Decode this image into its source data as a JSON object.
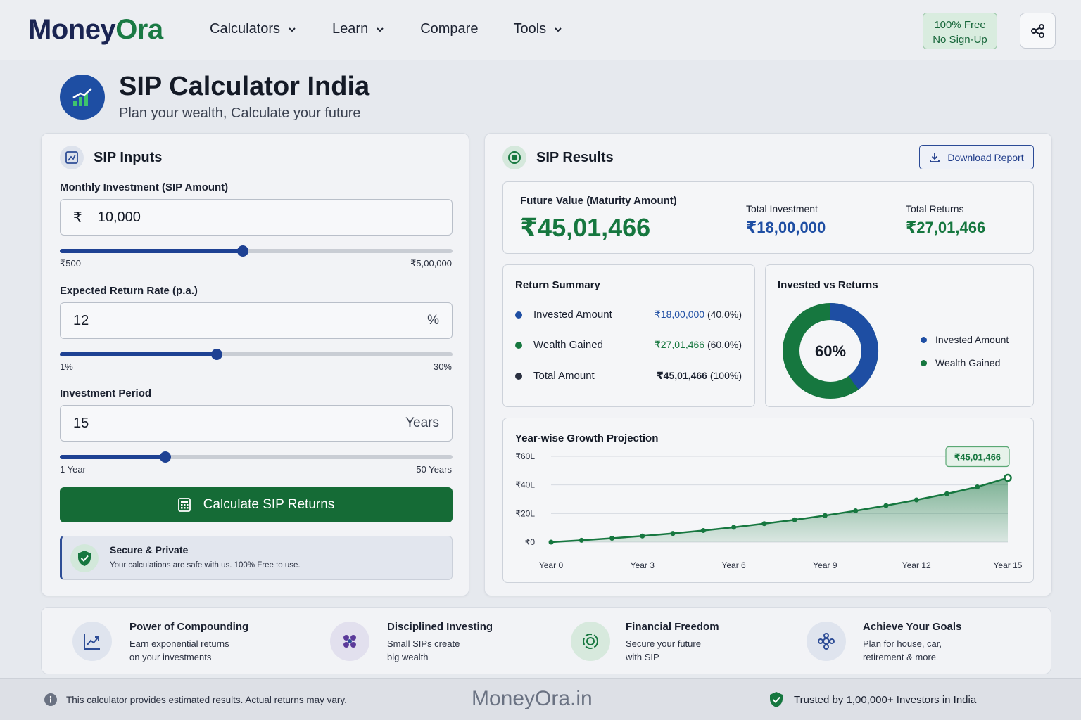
{
  "brand": {
    "part1": "Money",
    "part2": "Ora"
  },
  "nav": [
    {
      "label": "Calculators",
      "has_dropdown": true
    },
    {
      "label": "Learn",
      "has_dropdown": true
    },
    {
      "label": "Compare",
      "has_dropdown": false
    },
    {
      "label": "Tools",
      "has_dropdown": true
    }
  ],
  "badge": {
    "line1": "100% Free",
    "line2": "No Sign-Up"
  },
  "header": {
    "share_icon": "share-icon"
  },
  "page": {
    "title": "SIP Calculator India",
    "subtitle": "Plan your wealth, Calculate your future"
  },
  "inputs": {
    "heading": "SIP Inputs",
    "monthly": {
      "label": "Monthly Investment (SIP Amount)",
      "prefix": "₹",
      "value": "10,000",
      "min": "₹500",
      "max": "₹5,00,000",
      "slider_fraction": 0.466
    },
    "rate": {
      "label": "Expected Return Rate (p.a.)",
      "value": "12",
      "suffix": "%",
      "min": "1%",
      "max": "30%",
      "slider_fraction": 0.399
    },
    "period": {
      "label": "Investment Period",
      "value": "15",
      "suffix": "Years",
      "min": "1 Year",
      "max": "50 Years",
      "slider_fraction": 0.269
    },
    "calculate_label": "Calculate SIP Returns",
    "secure": {
      "title": "Secure & Private",
      "text": "Your calculations are safe with us. 100% Free to use."
    }
  },
  "results": {
    "heading": "SIP Results",
    "download_label": "Download Report",
    "future_value": {
      "label": "Future Value (Maturity Amount)",
      "value": "₹45,01,466"
    },
    "total_investment": {
      "label": "Total Investment",
      "value": "₹18,00,000"
    },
    "total_returns": {
      "label": "Total Returns",
      "value": "₹27,01,466"
    },
    "summary": {
      "title": "Return Summary",
      "rows": [
        {
          "label": "Invested Amount",
          "value": "₹18,00,000",
          "pct": "(40.0%)",
          "color": "#1e4ea3"
        },
        {
          "label": "Wealth Gained",
          "value": "₹27,01,466",
          "pct": "(60.0%)",
          "color": "#16773f"
        },
        {
          "label": "Total Amount",
          "value": "₹45,01,466",
          "pct": "(100%)",
          "color": "#2a3040"
        }
      ]
    },
    "donut": {
      "title": "Invested vs Returns",
      "center_label": "60%",
      "legend": [
        "Invested Amount",
        "Wealth Gained"
      ],
      "colors": {
        "invested": "#1e4ea3",
        "gained": "#16773f"
      }
    }
  },
  "chart_data": [
    {
      "type": "pie",
      "title": "Invested vs Returns",
      "categories": [
        "Invested Amount",
        "Wealth Gained"
      ],
      "values": [
        40,
        60
      ]
    },
    {
      "type": "area",
      "title": "Year-wise Growth Projection",
      "x": [
        0,
        1,
        2,
        3,
        4,
        5,
        6,
        7,
        8,
        9,
        10,
        11,
        12,
        13,
        14,
        15
      ],
      "x_tick_labels": [
        "Year 0",
        "Year 3",
        "Year 6",
        "Year 9",
        "Year 12",
        "Year 15"
      ],
      "x_tick_values": [
        0,
        3,
        6,
        9,
        12,
        15
      ],
      "y_tick_labels": [
        "₹0",
        "₹20L",
        "₹40L",
        "₹60L"
      ],
      "y_tick_values": [
        0,
        20,
        40,
        60
      ],
      "ylim": [
        0,
        60
      ],
      "values": [
        0,
        1.3,
        2.7,
        4.3,
        6.1,
        8.1,
        10.4,
        12.9,
        15.6,
        18.6,
        21.9,
        25.5,
        29.5,
        33.8,
        38.6,
        45.0
      ],
      "annotation": "₹45,01,466",
      "grid": true,
      "color": "#16773f"
    }
  ],
  "features": [
    {
      "title": "Power of Compounding",
      "line1": "Earn exponential returns",
      "line2": "on your investments",
      "icon": "trend-up-icon"
    },
    {
      "title": "Disciplined Investing",
      "line1": "Small SIPs create",
      "line2": "big wealth",
      "icon": "molecule-icon"
    },
    {
      "title": "Financial Freedom",
      "line1": "Secure your future",
      "line2": "with SIP",
      "icon": "cycle-money-icon"
    },
    {
      "title": "Achieve Your Goals",
      "line1": "Plan for house, car,",
      "line2": "retirement & more",
      "icon": "goal-icon"
    }
  ],
  "footer": {
    "note": "This calculator provides estimated results. Actual returns may vary.",
    "brand": "MoneyOra.in",
    "trust": "Trusted by 1,00,000+ Investors in India"
  }
}
